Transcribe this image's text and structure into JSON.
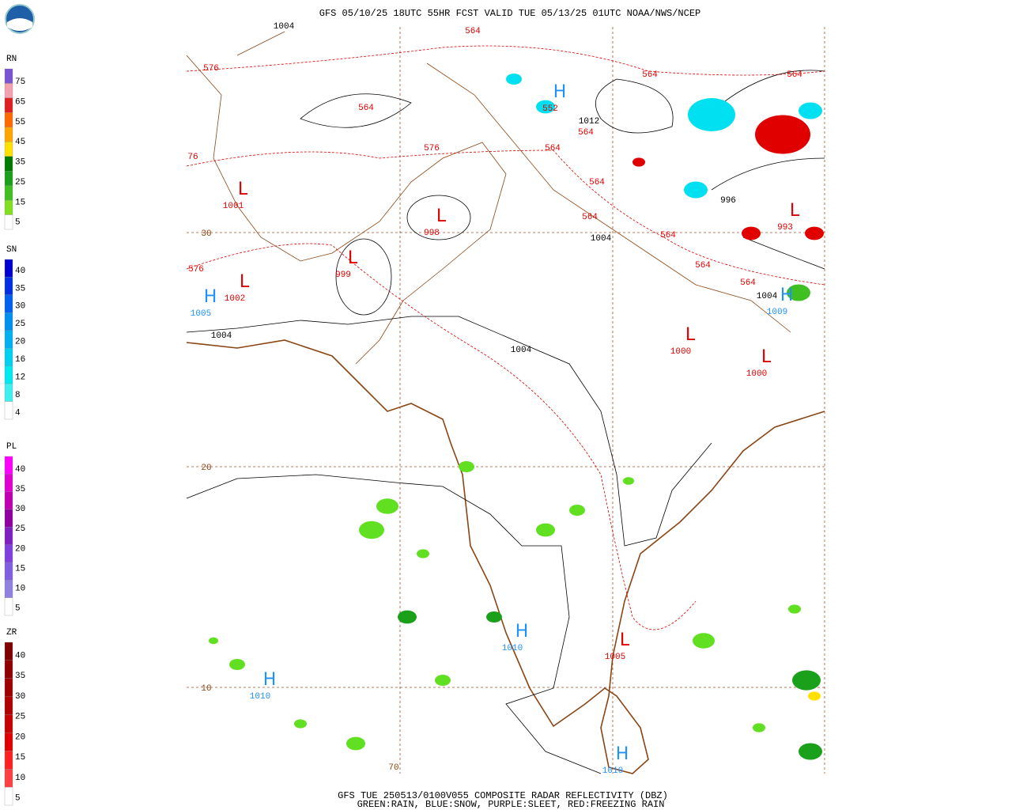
{
  "header": {
    "title": "GFS 05/10/25 18UTC 55HR FCST VALID TUE 05/13/25 01UTC NOAA/NWS/NCEP"
  },
  "footer": {
    "line1": "GFS TUE 250513/0100V055 COMPOSITE RADAR REFLECTIVITY (DBZ)",
    "line2": "GREEN:RAIN, BLUE:SNOW, PURPLE:SLEET, RED:FREEZING RAIN"
  },
  "legends": [
    {
      "title": "RN",
      "labels": [
        "75",
        "65",
        "55",
        "45",
        "35",
        "25",
        "15",
        "5"
      ]
    },
    {
      "title": "SN",
      "labels": [
        "40",
        "35",
        "30",
        "25",
        "20",
        "16",
        "12",
        "8",
        "4"
      ]
    },
    {
      "title": "PL",
      "labels": [
        "40",
        "35",
        "30",
        "25",
        "20",
        "15",
        "10",
        "5"
      ]
    },
    {
      "title": "ZR",
      "labels": [
        "40",
        "35",
        "30",
        "25",
        "20",
        "15",
        "10",
        "5"
      ]
    }
  ],
  "centers": [
    {
      "symbol": "L",
      "value": "1001"
    },
    {
      "symbol": "L",
      "value": "998"
    },
    {
      "symbol": "L",
      "value": "999"
    },
    {
      "symbol": "L",
      "value": "1002"
    },
    {
      "symbol": "H",
      "value": "1005"
    },
    {
      "symbol": "H",
      "value": "552"
    },
    {
      "symbol": "L",
      "value": "993"
    },
    {
      "symbol": "L",
      "value": "1000"
    },
    {
      "symbol": "L",
      "value": "1000"
    },
    {
      "symbol": "H",
      "value": "1010"
    },
    {
      "symbol": "L",
      "value": "1005"
    },
    {
      "symbol": "H",
      "value": "1010"
    },
    {
      "symbol": "H",
      "value": "1010"
    },
    {
      "symbol": "H",
      "value": "1009"
    }
  ],
  "thickness_labels": [
    "564",
    "564",
    "564",
    "564",
    "564",
    "564",
    "564",
    "564",
    "564",
    "564",
    "564",
    "576",
    "576",
    "576",
    "76"
  ],
  "isobar_labels": [
    "1004",
    "1004",
    "1004",
    "1004",
    "1004",
    "1012",
    "996"
  ],
  "lat_labels": [
    "30",
    "20",
    "10"
  ],
  "lon_labels": [
    "70"
  ]
}
